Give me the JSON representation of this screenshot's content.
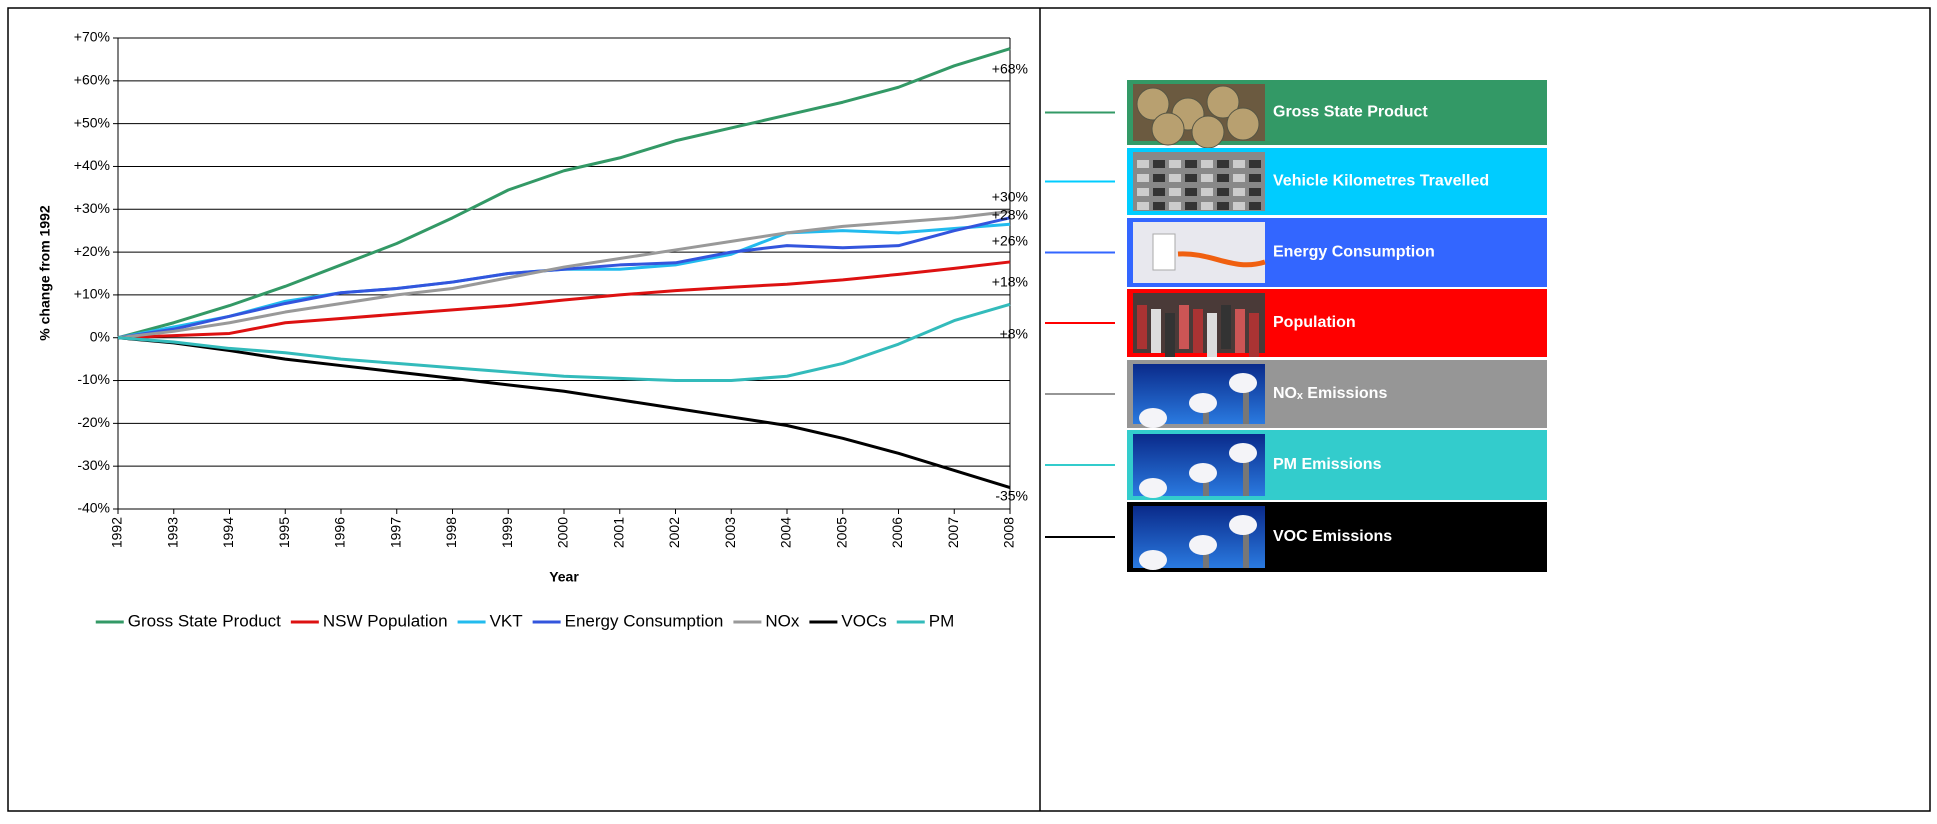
{
  "chart_data": {
    "type": "line",
    "y_label": "% change from 1992",
    "x_label": "Year",
    "x": [
      1992,
      1993,
      1994,
      1995,
      1996,
      1997,
      1998,
      1999,
      2000,
      2001,
      2002,
      2003,
      2004,
      2005,
      2006,
      2007,
      2008
    ],
    "xlim": [
      1992,
      2008
    ],
    "xticks": [
      1992,
      1993,
      1994,
      1995,
      1996,
      1997,
      1998,
      1999,
      2000,
      2001,
      2002,
      2003,
      2004,
      2005,
      2006,
      2007,
      2008
    ],
    "ylim": [
      -40,
      70
    ],
    "yticks": [
      {
        "value": -40,
        "label": "-40%"
      },
      {
        "value": -30,
        "label": "-30%"
      },
      {
        "value": -20,
        "label": "-20%"
      },
      {
        "value": -10,
        "label": "-10%"
      },
      {
        "value": 0,
        "label": "0%"
      },
      {
        "value": 10,
        "label": "+10%"
      },
      {
        "value": 20,
        "label": "+20%"
      },
      {
        "value": 30,
        "label": "+30%"
      },
      {
        "value": 40,
        "label": "+40%"
      },
      {
        "value": 50,
        "label": "+50%"
      },
      {
        "value": 60,
        "label": "+60%"
      },
      {
        "value": 70,
        "label": "+70%"
      }
    ],
    "grid": true,
    "series": [
      {
        "name": "Gross State Product",
        "color": "#339966",
        "values": [
          0,
          3.5,
          7.5,
          12,
          17,
          22,
          28,
          34.5,
          39,
          42,
          46,
          49,
          52,
          55,
          58.5,
          63.5,
          67.5
        ]
      },
      {
        "name": "NSW Population",
        "color": "#dd1111",
        "values": [
          0,
          0.5,
          1,
          3.5,
          4.5,
          5.5,
          6.5,
          7.5,
          8.8,
          10,
          11,
          11.8,
          12.5,
          13.5,
          14.8,
          16.2,
          17.7
        ]
      },
      {
        "name": "VKT",
        "color": "#22bbee",
        "values": [
          0,
          2.5,
          5,
          8.5,
          10.5,
          11.5,
          13,
          15,
          16,
          16,
          17,
          19.5,
          24.5,
          25,
          24.5,
          25.5,
          26.5
        ]
      },
      {
        "name": "Energy Consumption",
        "color": "#3355dd",
        "values": [
          0,
          2,
          5,
          8,
          10.5,
          11.5,
          13,
          15,
          16,
          17,
          17.5,
          20,
          21.5,
          21,
          21.5,
          25,
          28
        ]
      },
      {
        "name": "NOx",
        "color": "#999999",
        "values": [
          0,
          1.5,
          3.5,
          6,
          8,
          10,
          11.5,
          14,
          16.5,
          18.5,
          20.5,
          22.5,
          24.5,
          26,
          27,
          28,
          29.5
        ]
      },
      {
        "name": "VOCs",
        "color": "#000000",
        "values": [
          0,
          -1.2,
          -3,
          -5,
          -6.5,
          -8,
          -9.5,
          -11,
          -12.5,
          -14.5,
          -16.5,
          -18.5,
          -20.5,
          -23.5,
          -27,
          -31,
          -35
        ]
      },
      {
        "name": "PM",
        "color": "#33bbbb",
        "values": [
          0,
          -1,
          -2.5,
          -3.5,
          -5,
          -6,
          -7,
          -8,
          -9,
          -9.5,
          -10,
          -10,
          -9,
          -6,
          -1.5,
          4,
          7.8
        ]
      }
    ],
    "annotations": [
      "+68%",
      "+30%",
      "+28%",
      "+26%",
      "+18%",
      "+8%",
      "-35%"
    ]
  },
  "side_legend": {
    "items": [
      {
        "label": "Gross State Product",
        "color": "#339966"
      },
      {
        "label": "Vehicle Kilometres Travelled",
        "color": "#00ccff"
      },
      {
        "label": "Energy Consumption",
        "color": "#3366ff"
      },
      {
        "label": "Population",
        "color": "#ff0000"
      },
      {
        "label": "NOₓ Emissions",
        "color": "#969696"
      },
      {
        "label": "PM Emissions",
        "color": "#33cccc"
      },
      {
        "label": "VOC Emissions",
        "color": "#000000"
      }
    ]
  }
}
